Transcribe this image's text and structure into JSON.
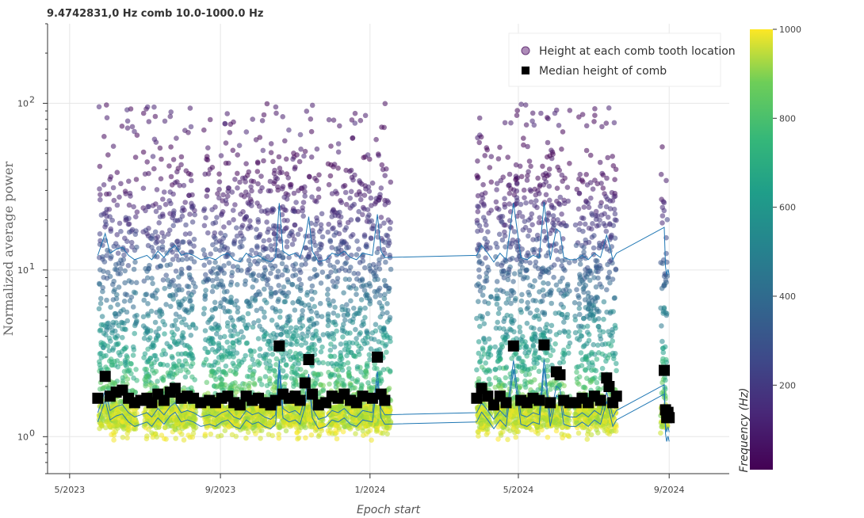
{
  "chart_data": {
    "type": "scatter",
    "title": "9.4742831,0 Hz comb 10.0-1000.0 Hz",
    "xlabel": "Epoch start",
    "ylabel": "Normalized average power",
    "yscale": "log",
    "ylim": [
      0.6,
      300
    ],
    "xlim": [
      "2023-04-13",
      "2024-10-20"
    ],
    "x_ticks": [
      {
        "date": "2023-05-01",
        "label": "5/2023"
      },
      {
        "date": "2023-09-01",
        "label": "9/2023"
      },
      {
        "date": "2024-01-01",
        "label": "1/2024"
      },
      {
        "date": "2024-05-01",
        "label": "5/2024"
      },
      {
        "date": "2024-09-01",
        "label": "9/2024"
      }
    ],
    "y_ticks": [
      {
        "value": 1,
        "label": "10"
      },
      {
        "value": 10,
        "label": "10"
      },
      {
        "value": 100,
        "label": "10"
      }
    ],
    "y_tick_exponents": [
      "0",
      "1",
      "2"
    ],
    "grid": true,
    "legend_position": "top-right",
    "colorbar": {
      "label": "Frequency (Hz)",
      "colormap": "viridis",
      "range": [
        10,
        1000
      ],
      "ticks": [
        200,
        400,
        600,
        800,
        1000
      ]
    },
    "series": [
      {
        "name": "Height at each comb tooth location",
        "marker": "circle",
        "data_segments": [
          {
            "start": "2023-05-25",
            "end": "2023-06-25"
          },
          {
            "start": "2023-06-30",
            "end": "2023-08-12"
          },
          {
            "start": "2023-08-18",
            "end": "2023-11-24"
          },
          {
            "start": "2023-11-27",
            "end": "2024-01-18"
          },
          {
            "start": "2024-03-28",
            "end": "2024-04-09"
          },
          {
            "start": "2024-04-12",
            "end": "2024-06-12"
          },
          {
            "start": "2024-06-16",
            "end": "2024-07-20"
          },
          {
            "start": "2024-08-25",
            "end": "2024-08-31"
          }
        ],
        "typical_range": {
          "low": 1.15,
          "high": 100
        }
      },
      {
        "name": "Median height of comb",
        "marker": "square",
        "color": "#000000",
        "points": [
          {
            "x": "2023-05-24",
            "y": 1.7
          },
          {
            "x": "2023-05-30",
            "y": 2.3
          },
          {
            "x": "2023-06-03",
            "y": 1.75
          },
          {
            "x": "2023-06-08",
            "y": 1.85
          },
          {
            "x": "2023-06-13",
            "y": 1.9
          },
          {
            "x": "2023-06-18",
            "y": 1.7
          },
          {
            "x": "2023-06-23",
            "y": 1.6
          },
          {
            "x": "2023-06-28",
            "y": 1.65
          },
          {
            "x": "2023-07-03",
            "y": 1.7
          },
          {
            "x": "2023-07-07",
            "y": 1.6
          },
          {
            "x": "2023-07-12",
            "y": 1.8
          },
          {
            "x": "2023-07-17",
            "y": 1.65
          },
          {
            "x": "2023-07-22",
            "y": 1.85
          },
          {
            "x": "2023-07-26",
            "y": 1.95
          },
          {
            "x": "2023-07-31",
            "y": 1.7
          },
          {
            "x": "2023-08-05",
            "y": 1.75
          },
          {
            "x": "2023-08-10",
            "y": 1.7
          },
          {
            "x": "2023-08-16",
            "y": 1.6
          },
          {
            "x": "2023-08-23",
            "y": 1.65
          },
          {
            "x": "2023-08-28",
            "y": 1.6
          },
          {
            "x": "2023-09-02",
            "y": 1.7
          },
          {
            "x": "2023-09-07",
            "y": 1.75
          },
          {
            "x": "2023-09-12",
            "y": 1.6
          },
          {
            "x": "2023-09-17",
            "y": 1.55
          },
          {
            "x": "2023-09-22",
            "y": 1.75
          },
          {
            "x": "2023-09-27",
            "y": 1.65
          },
          {
            "x": "2023-10-02",
            "y": 1.7
          },
          {
            "x": "2023-10-07",
            "y": 1.6
          },
          {
            "x": "2023-10-12",
            "y": 1.55
          },
          {
            "x": "2023-10-16",
            "y": 1.65
          },
          {
            "x": "2023-10-19",
            "y": 3.5
          },
          {
            "x": "2023-10-22",
            "y": 1.8
          },
          {
            "x": "2023-10-27",
            "y": 1.7
          },
          {
            "x": "2023-11-01",
            "y": 1.75
          },
          {
            "x": "2023-11-05",
            "y": 1.65
          },
          {
            "x": "2023-11-09",
            "y": 2.1
          },
          {
            "x": "2023-11-12",
            "y": 2.9
          },
          {
            "x": "2023-11-15",
            "y": 1.8
          },
          {
            "x": "2023-11-20",
            "y": 1.55
          },
          {
            "x": "2023-11-26",
            "y": 1.6
          },
          {
            "x": "2023-12-01",
            "y": 1.75
          },
          {
            "x": "2023-12-06",
            "y": 1.7
          },
          {
            "x": "2023-12-11",
            "y": 1.8
          },
          {
            "x": "2023-12-16",
            "y": 1.65
          },
          {
            "x": "2023-12-21",
            "y": 1.6
          },
          {
            "x": "2023-12-26",
            "y": 1.75
          },
          {
            "x": "2024-01-03",
            "y": 1.7
          },
          {
            "x": "2024-01-07",
            "y": 3.0
          },
          {
            "x": "2024-01-10",
            "y": 1.8
          },
          {
            "x": "2024-01-13",
            "y": 1.65
          },
          {
            "x": "2024-03-28",
            "y": 1.7
          },
          {
            "x": "2024-04-01",
            "y": 1.95
          },
          {
            "x": "2024-04-06",
            "y": 1.75
          },
          {
            "x": "2024-04-11",
            "y": 1.55
          },
          {
            "x": "2024-04-16",
            "y": 1.75
          },
          {
            "x": "2024-04-21",
            "y": 1.6
          },
          {
            "x": "2024-04-27",
            "y": 3.5
          },
          {
            "x": "2024-05-03",
            "y": 1.65
          },
          {
            "x": "2024-05-08",
            "y": 1.6
          },
          {
            "x": "2024-05-13",
            "y": 1.7
          },
          {
            "x": "2024-05-18",
            "y": 1.65
          },
          {
            "x": "2024-05-22",
            "y": 3.55
          },
          {
            "x": "2024-05-27",
            "y": 1.6
          },
          {
            "x": "2024-06-01",
            "y": 2.45
          },
          {
            "x": "2024-06-04",
            "y": 2.35
          },
          {
            "x": "2024-06-07",
            "y": 1.65
          },
          {
            "x": "2024-06-12",
            "y": 1.6
          },
          {
            "x": "2024-06-17",
            "y": 1.6
          },
          {
            "x": "2024-06-22",
            "y": 1.7
          },
          {
            "x": "2024-06-27",
            "y": 1.6
          },
          {
            "x": "2024-07-02",
            "y": 1.75
          },
          {
            "x": "2024-07-07",
            "y": 1.65
          },
          {
            "x": "2024-07-12",
            "y": 2.25
          },
          {
            "x": "2024-07-14",
            "y": 2.0
          },
          {
            "x": "2024-07-17",
            "y": 1.6
          },
          {
            "x": "2024-07-20",
            "y": 1.75
          },
          {
            "x": "2024-08-28",
            "y": 2.5
          },
          {
            "x": "2024-08-29",
            "y": 1.45
          },
          {
            "x": "2024-08-30",
            "y": 1.3
          },
          {
            "x": "2024-08-31",
            "y": 1.4
          },
          {
            "x": "2024-09-01",
            "y": 1.3
          }
        ]
      }
    ]
  }
}
